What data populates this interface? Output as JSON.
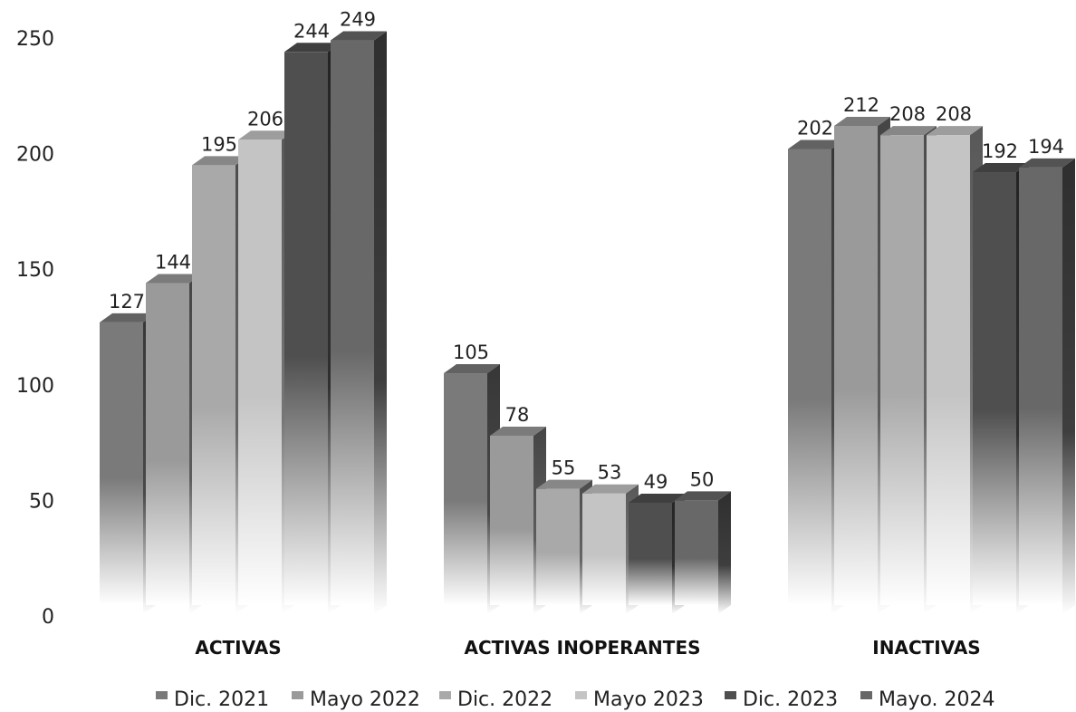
{
  "chart_data": {
    "type": "bar",
    "categories": [
      "ACTIVAS",
      "ACTIVAS INOPERANTES",
      "INACTIVAS"
    ],
    "series": [
      {
        "name": "Dic. 2021",
        "values": [
          127,
          105,
          202
        ],
        "color": "#7a7a7a"
      },
      {
        "name": "Mayo 2022",
        "values": [
          144,
          78,
          212
        ],
        "color": "#9a9a9a"
      },
      {
        "name": "Dic. 2022",
        "values": [
          195,
          55,
          208
        ],
        "color": "#a9a9a9"
      },
      {
        "name": "Mayo 2023",
        "values": [
          206,
          53,
          208
        ],
        "color": "#c4c4c4"
      },
      {
        "name": "Dic. 2023",
        "values": [
          244,
          49,
          192
        ],
        "color": "#4f4f4f"
      },
      {
        "name": "Mayo. 2024",
        "values": [
          249,
          50,
          194
        ],
        "color": "#686868"
      }
    ],
    "yticks": [
      "0",
      "50",
      "100",
      "150",
      "200",
      "250"
    ],
    "ylim": [
      0,
      250
    ],
    "grid": false,
    "legend_position": "bottom"
  }
}
